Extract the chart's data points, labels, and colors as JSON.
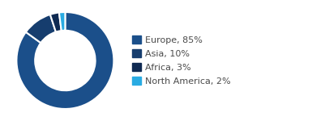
{
  "labels": [
    "Europe, 85%",
    "Asia, 10%",
    "Africa, 3%",
    "North America, 2%"
  ],
  "values": [
    85,
    10,
    3,
    2
  ],
  "wedge_colors": [
    "#1b4f8a",
    "#163d6e",
    "#0f2a52",
    "#29abe2"
  ],
  "donut_width": 0.38,
  "background_color": "#ffffff",
  "legend_fontsize": 8.0,
  "legend_text_color": "#4a4a4a",
  "startangle": 90,
  "counterclock": false,
  "edge_color": "#ffffff",
  "edge_linewidth": 1.5
}
